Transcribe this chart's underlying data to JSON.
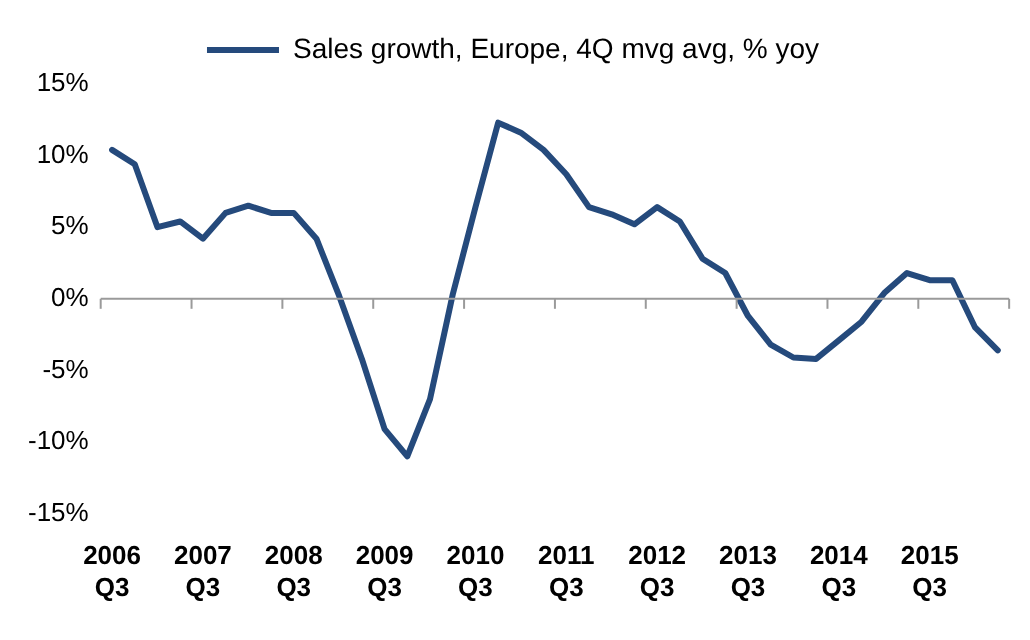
{
  "chart_data": {
    "type": "line",
    "legend": "top",
    "categories": [
      "2006 Q3",
      null,
      null,
      null,
      "2007 Q3",
      null,
      null,
      null,
      "2008 Q3",
      null,
      null,
      null,
      "2009 Q3",
      null,
      null,
      null,
      "2010 Q3",
      null,
      null,
      null,
      "2011 Q3",
      null,
      null,
      null,
      "2012 Q3",
      null,
      null,
      null,
      "2013 Q3",
      null,
      null,
      null,
      "2014 Q3",
      null,
      null,
      null,
      "2015 Q3",
      null,
      null,
      null
    ],
    "series": [
      {
        "name": "Sales growth, Europe, 4Q mvg avg, % yoy",
        "color": "#254a7c",
        "values": [
          10.4,
          9.4,
          5.0,
          5.4,
          4.2,
          6.0,
          6.5,
          6.0,
          6.0,
          4.2,
          0.2,
          -4.2,
          -9.1,
          -11.0,
          -7.0,
          0.3,
          6.4,
          12.3,
          11.6,
          10.4,
          8.7,
          6.4,
          5.9,
          5.2,
          6.4,
          5.4,
          2.8,
          1.8,
          -1.2,
          -3.2,
          -4.1,
          -4.2,
          -2.9,
          -1.6,
          0.4,
          1.8,
          1.3,
          1.3,
          -2.0,
          -3.6
        ]
      }
    ],
    "ylim": [
      -15,
      15
    ],
    "yticks": [
      {
        "value": -15,
        "label": "-15%"
      },
      {
        "value": -10,
        "label": "-10%"
      },
      {
        "value": -5,
        "label": "-5%"
      },
      {
        "value": 0,
        "label": "0%"
      },
      {
        "value": 5,
        "label": "5%"
      },
      {
        "value": 10,
        "label": "10%"
      },
      {
        "value": 15,
        "label": "15%"
      }
    ],
    "ref_lines": [
      {
        "axis": "y",
        "value": 0,
        "color": "#9a9a9a"
      }
    ],
    "grid": false,
    "marker": "none",
    "line_style": "solid"
  }
}
